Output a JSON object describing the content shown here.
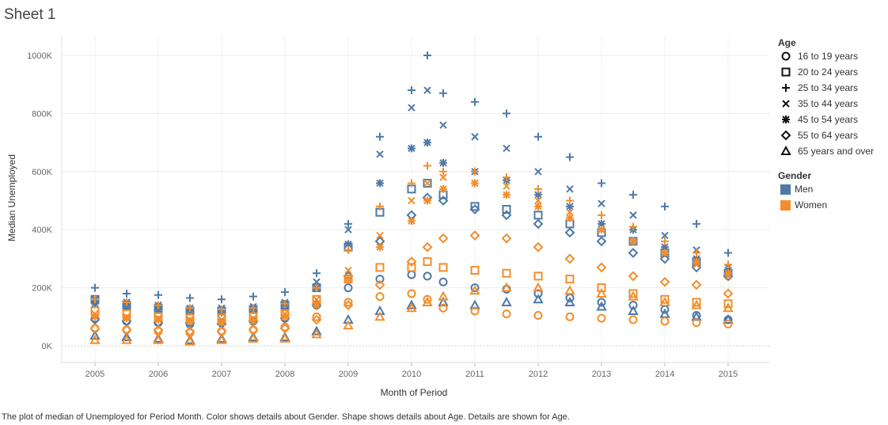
{
  "sheet": {
    "title": "Sheet 1"
  },
  "caption": "The plot of median of Unemployed for Period Month.  Color shows details about Gender.  Shape shows details about Age.  Details are shown for Age.",
  "colors": {
    "Men": "#4e79a7",
    "Women": "#f28e2b"
  },
  "legend": {
    "age_title": "Age",
    "age_items": [
      {
        "label": "16 to 19 years",
        "shape": "circle"
      },
      {
        "label": "20 to 24 years",
        "shape": "square"
      },
      {
        "label": "25 to 34 years",
        "shape": "plus"
      },
      {
        "label": "35 to 44 years",
        "shape": "cross"
      },
      {
        "label": "45 to 54 years",
        "shape": "asterisk"
      },
      {
        "label": "55 to 64 years",
        "shape": "diamond"
      },
      {
        "label": "65 years and over",
        "shape": "triangle"
      }
    ],
    "gender_title": "Gender",
    "gender_items": [
      {
        "label": "Men",
        "color": "#4e79a7"
      },
      {
        "label": "Women",
        "color": "#f28e2b"
      }
    ]
  },
  "chart_data": {
    "type": "scatter",
    "xlabel": "Month of Period",
    "ylabel": "Median Unemployed",
    "x_ticks": [
      "2005",
      "2006",
      "2007",
      "2008",
      "2009",
      "2010",
      "2011",
      "2012",
      "2013",
      "2014",
      "2015"
    ],
    "y_ticks": [
      "0K",
      "200K",
      "400K",
      "600K",
      "800K",
      "1000K"
    ],
    "xlim": [
      "2005-01",
      "2015-02"
    ],
    "ylim": [
      0,
      1000000
    ],
    "grid": true,
    "legend_position": "right",
    "months": [
      "2005-01",
      "2005-07",
      "2006-01",
      "2006-07",
      "2007-01",
      "2007-07",
      "2008-01",
      "2008-07",
      "2009-01",
      "2009-07",
      "2010-01",
      "2010-04",
      "2010-07",
      "2011-01",
      "2011-07",
      "2012-01",
      "2012-07",
      "2013-01",
      "2013-07",
      "2014-01",
      "2014-07",
      "2015-01"
    ],
    "series": [
      {
        "name": "Men",
        "age": "16 to 19 years",
        "values": [
          95,
          85,
          80,
          75,
          80,
          85,
          95,
          140,
          200,
          230,
          245,
          240,
          220,
          200,
          195,
          180,
          165,
          150,
          140,
          125,
          105,
          90
        ]
      },
      {
        "name": "Men",
        "age": "20 to 24 years",
        "values": [
          160,
          140,
          130,
          120,
          120,
          125,
          140,
          200,
          340,
          460,
          540,
          560,
          520,
          480,
          470,
          450,
          420,
          390,
          360,
          320,
          290,
          250
        ]
      },
      {
        "name": "Men",
        "age": "25 to 34 years",
        "values": [
          200,
          180,
          175,
          165,
          160,
          170,
          185,
          250,
          420,
          720,
          880,
          1000,
          870,
          840,
          800,
          720,
          650,
          560,
          520,
          480,
          420,
          320
        ]
      },
      {
        "name": "Men",
        "age": "35 to 44 years",
        "values": [
          160,
          150,
          140,
          130,
          130,
          135,
          150,
          220,
          400,
          660,
          820,
          880,
          760,
          720,
          680,
          600,
          540,
          490,
          450,
          380,
          330,
          270
        ]
      },
      {
        "name": "Men",
        "age": "45 to 54 years",
        "values": [
          145,
          135,
          125,
          120,
          115,
          125,
          140,
          200,
          350,
          560,
          680,
          700,
          630,
          600,
          570,
          520,
          480,
          420,
          400,
          340,
          300,
          260
        ]
      },
      {
        "name": "Men",
        "age": "55 to 64 years",
        "values": [
          90,
          85,
          80,
          80,
          75,
          85,
          95,
          140,
          240,
          360,
          450,
          510,
          500,
          470,
          450,
          420,
          390,
          360,
          320,
          300,
          270,
          240
        ]
      },
      {
        "name": "Men",
        "age": "65 years and over",
        "values": [
          35,
          30,
          25,
          20,
          25,
          30,
          30,
          50,
          90,
          120,
          140,
          150,
          150,
          140,
          150,
          160,
          150,
          135,
          120,
          110,
          100,
          90
        ]
      },
      {
        "name": "Women",
        "age": "16 to 19 years",
        "values": [
          60,
          55,
          50,
          45,
          50,
          55,
          65,
          100,
          150,
          170,
          180,
          160,
          130,
          120,
          110,
          105,
          100,
          95,
          90,
          85,
          80,
          75
        ]
      },
      {
        "name": "Women",
        "age": "20 to 24 years",
        "values": [
          120,
          110,
          100,
          95,
          95,
          100,
          110,
          160,
          230,
          270,
          270,
          290,
          270,
          260,
          250,
          240,
          230,
          200,
          180,
          160,
          150,
          145
        ]
      },
      {
        "name": "Women",
        "age": "25 to 34 years",
        "values": [
          160,
          150,
          140,
          130,
          125,
          130,
          145,
          200,
          330,
          480,
          560,
          620,
          600,
          600,
          580,
          540,
          500,
          450,
          410,
          360,
          320,
          280
        ]
      },
      {
        "name": "Women",
        "age": "35 to 44 years",
        "values": [
          110,
          100,
          95,
          90,
          90,
          95,
          110,
          160,
          260,
          380,
          500,
          560,
          580,
          560,
          550,
          500,
          460,
          400,
          360,
          320,
          280,
          240
        ]
      },
      {
        "name": "Women",
        "age": "45 to 54 years",
        "values": [
          100,
          95,
          90,
          85,
          80,
          85,
          100,
          140,
          230,
          340,
          430,
          500,
          540,
          560,
          520,
          480,
          440,
          400,
          360,
          320,
          290,
          250
        ]
      },
      {
        "name": "Women",
        "age": "55 to 64 years",
        "values": [
          60,
          55,
          55,
          50,
          50,
          55,
          60,
          90,
          140,
          210,
          290,
          340,
          370,
          380,
          370,
          340,
          300,
          270,
          240,
          220,
          210,
          180
        ]
      },
      {
        "name": "Women",
        "age": "65 years and over",
        "values": [
          20,
          20,
          20,
          15,
          20,
          25,
          25,
          40,
          70,
          100,
          130,
          150,
          170,
          190,
          200,
          200,
          190,
          180,
          170,
          150,
          140,
          130
        ]
      }
    ]
  }
}
